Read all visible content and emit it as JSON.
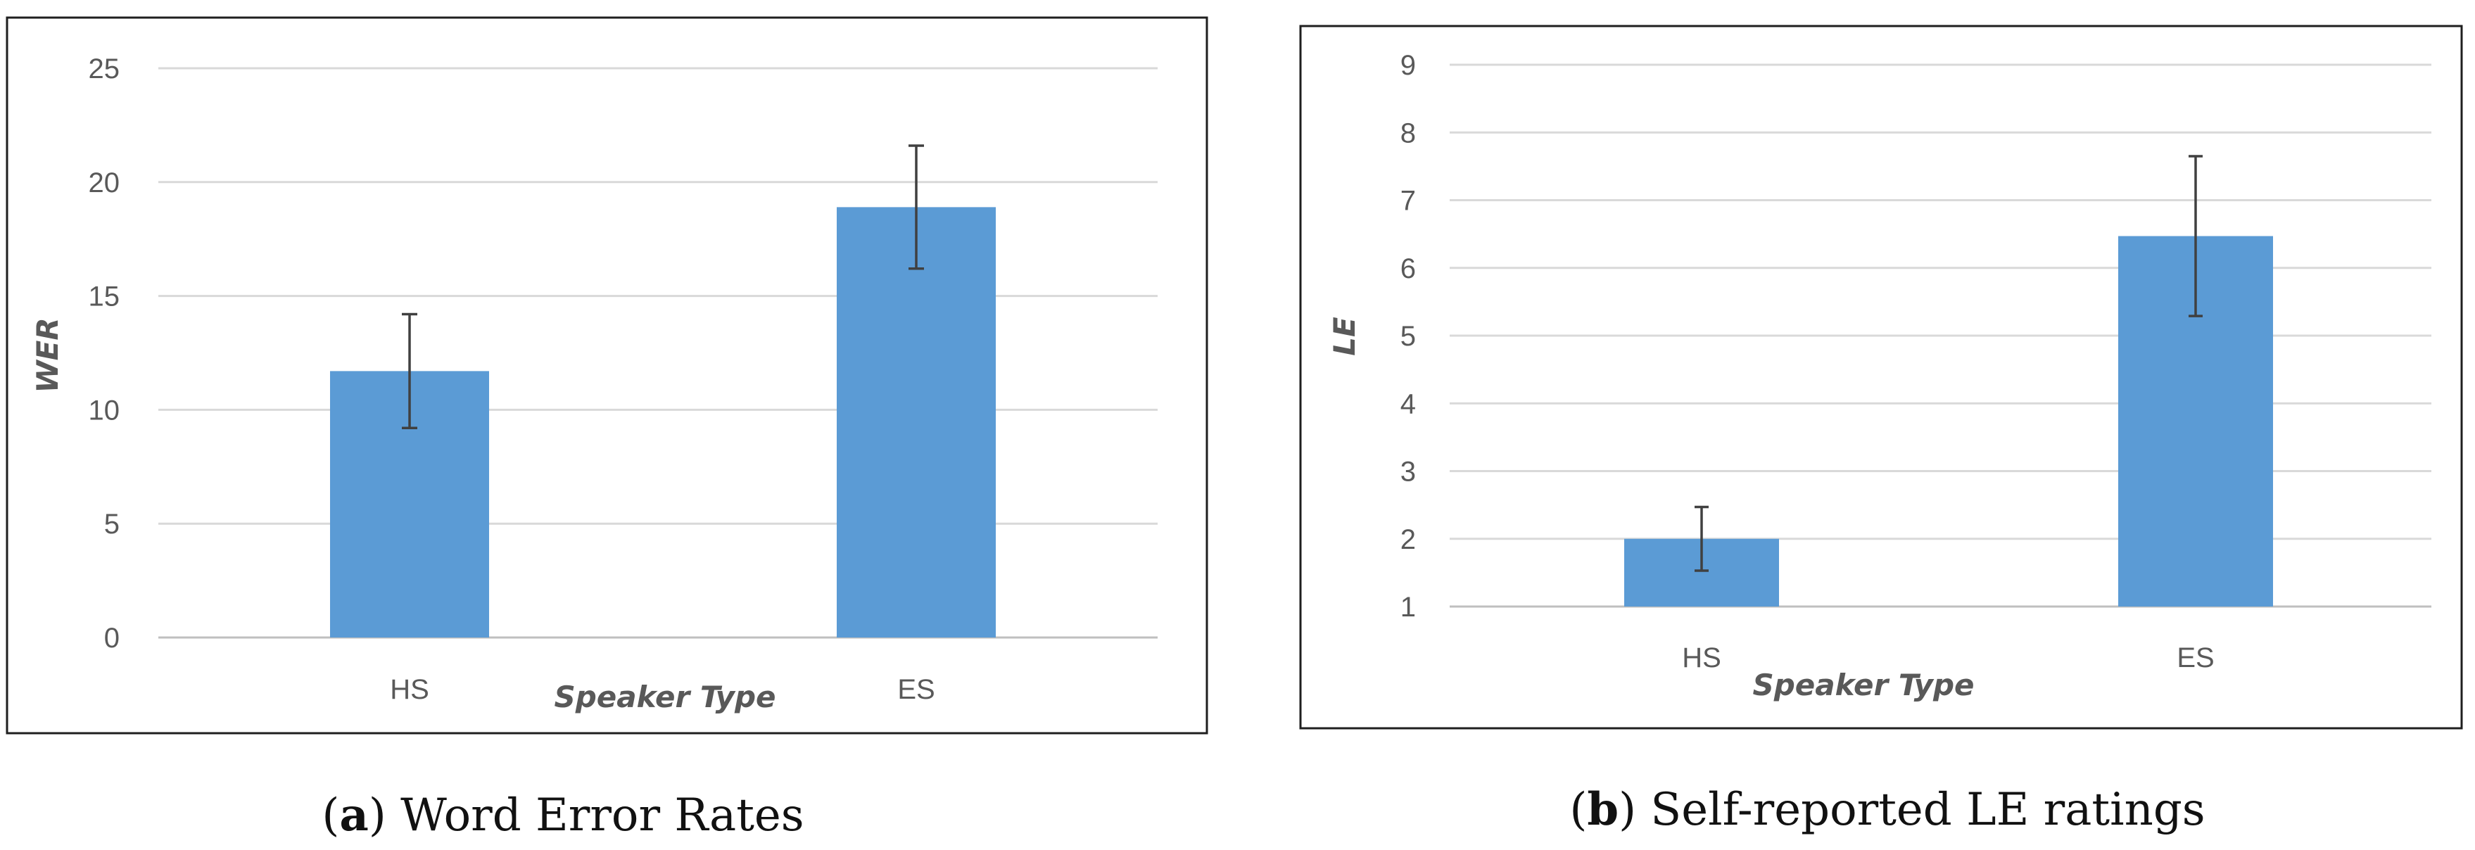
{
  "chart_data": [
    {
      "type": "bar",
      "panel_label": "a",
      "caption": "Word Error Rates",
      "categories": [
        "HS",
        "ES"
      ],
      "values": [
        11.7,
        18.9
      ],
      "error": [
        2.5,
        2.7
      ],
      "xlabel": "Speaker Type",
      "ylabel": "WER",
      "ylim": [
        0,
        25
      ],
      "yticks": [
        "0",
        "5",
        "10",
        "15",
        "20",
        "25"
      ],
      "grid": true,
      "color": "#5b9bd5"
    },
    {
      "type": "bar",
      "panel_label": "b",
      "caption": "Self-reported LE ratings",
      "categories": [
        "HS",
        "ES"
      ],
      "values": [
        2.0,
        6.47
      ],
      "error": [
        0.47,
        1.18
      ],
      "xlabel": "Speaker Type",
      "ylabel": "LE",
      "ylim": [
        1,
        9
      ],
      "yticks": [
        "1",
        "2",
        "3",
        "4",
        "5",
        "6",
        "7",
        "8",
        "9"
      ],
      "grid": true,
      "color": "#5b9bd5"
    }
  ]
}
